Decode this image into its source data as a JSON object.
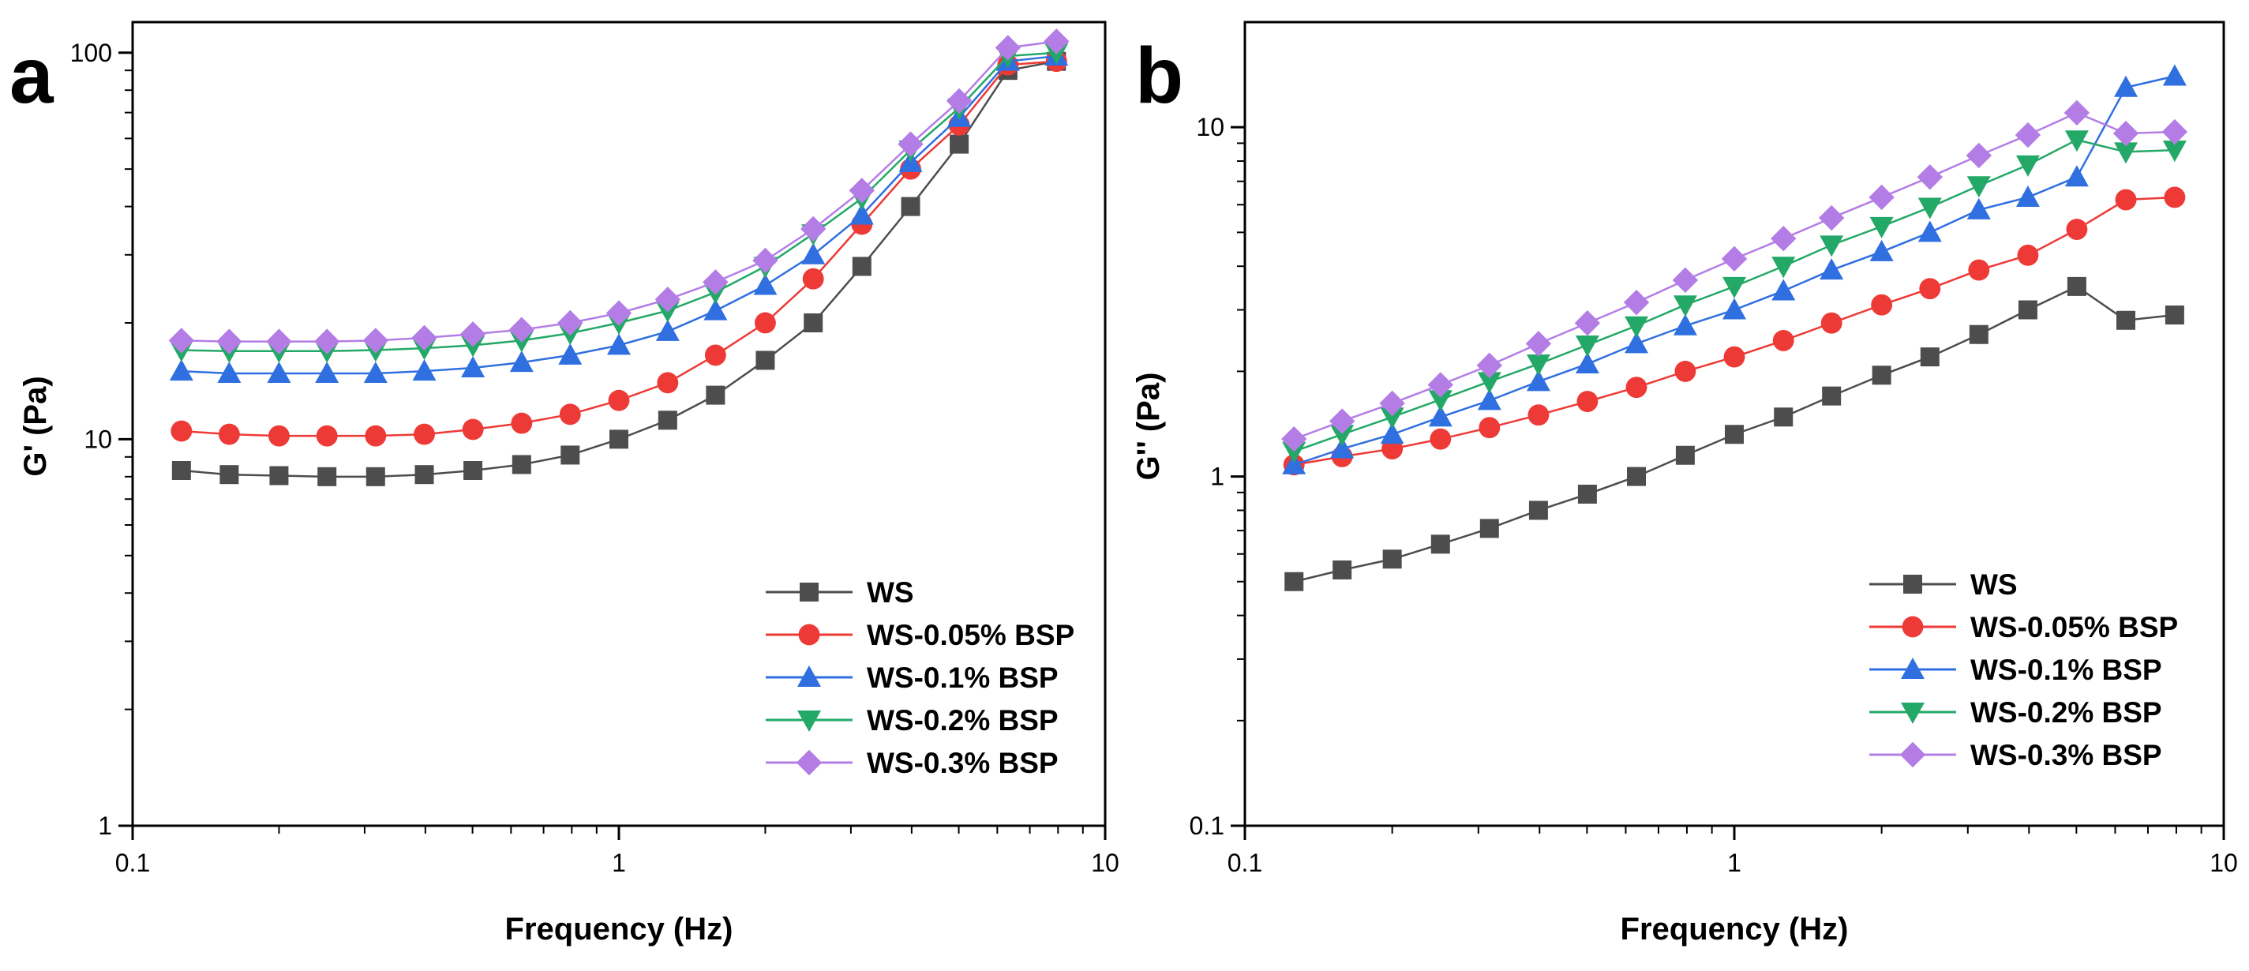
{
  "panels": [
    {
      "label": "a"
    },
    {
      "label": "b"
    }
  ],
  "colors": {
    "WS": "#4d4d4d",
    "WS-0.05% BSP": "#ee3a36",
    "WS-0.1% BSP": "#2f6fe0",
    "WS-0.2% BSP": "#23a867",
    "WS-0.3% BSP": "#b47de6"
  },
  "chart_data": [
    {
      "type": "line",
      "panel": "a",
      "title": "",
      "xlabel": "Frequency (Hz)",
      "ylabel": "G' (Pa)",
      "xscale": "log",
      "yscale": "log",
      "xlim": [
        0.1,
        10
      ],
      "ylim": [
        1,
        120
      ],
      "xticks": [
        {
          "v": 0.1,
          "label": "0.1"
        },
        {
          "v": 1,
          "label": "1"
        },
        {
          "v": 10,
          "label": "10"
        }
      ],
      "yticks": [
        {
          "v": 1,
          "label": "1"
        },
        {
          "v": 10,
          "label": "10"
        },
        {
          "v": 100,
          "label": "100"
        }
      ],
      "legend_position": "lower-right",
      "x": [
        0.126,
        0.158,
        0.2,
        0.251,
        0.316,
        0.398,
        0.501,
        0.631,
        0.794,
        1.0,
        1.26,
        1.58,
        2.0,
        2.51,
        3.16,
        3.98,
        5.01,
        6.31,
        7.94
      ],
      "series": [
        {
          "name": "WS",
          "marker": "square",
          "values": [
            8.3,
            8.1,
            8.05,
            8.0,
            8.0,
            8.1,
            8.3,
            8.6,
            9.1,
            10.0,
            11.2,
            13.0,
            16.0,
            20.0,
            28.0,
            40.0,
            58.0,
            90.0,
            95.0
          ]
        },
        {
          "name": "WS-0.05% BSP",
          "marker": "circle",
          "values": [
            10.5,
            10.3,
            10.2,
            10.2,
            10.2,
            10.3,
            10.6,
            11.0,
            11.6,
            12.6,
            14.0,
            16.5,
            20.0,
            26.0,
            36.0,
            50.0,
            65.0,
            93.0,
            95.0
          ]
        },
        {
          "name": "WS-0.1% BSP",
          "marker": "triangle-up",
          "values": [
            15.0,
            14.8,
            14.8,
            14.8,
            14.8,
            15.0,
            15.3,
            15.8,
            16.5,
            17.5,
            19.0,
            21.5,
            25.0,
            30.0,
            38.0,
            52.0,
            68.0,
            95.0,
            98.0
          ]
        },
        {
          "name": "WS-0.2% BSP",
          "marker": "triangle-down",
          "values": [
            17.0,
            16.9,
            16.9,
            16.9,
            17.0,
            17.2,
            17.5,
            18.0,
            18.8,
            20.0,
            21.5,
            24.0,
            28.0,
            34.0,
            42.0,
            56.0,
            72.0,
            98.0,
            100.0
          ]
        },
        {
          "name": "WS-0.3% BSP",
          "marker": "diamond",
          "values": [
            18.0,
            17.9,
            17.9,
            17.9,
            18.0,
            18.3,
            18.7,
            19.2,
            20.0,
            21.2,
            23.0,
            25.5,
            29.0,
            35.0,
            44.0,
            58.0,
            75.0,
            103.0,
            107.0
          ]
        }
      ]
    },
    {
      "type": "line",
      "panel": "b",
      "title": "",
      "xlabel": "Frequency (Hz)",
      "ylabel": "G'' (Pa)",
      "xscale": "log",
      "yscale": "log",
      "xlim": [
        0.1,
        10
      ],
      "ylim": [
        0.1,
        20
      ],
      "xticks": [
        {
          "v": 0.1,
          "label": "0.1"
        },
        {
          "v": 1,
          "label": "1"
        },
        {
          "v": 10,
          "label": "10"
        }
      ],
      "yticks": [
        {
          "v": 0.1,
          "label": "0.1"
        },
        {
          "v": 1,
          "label": "1"
        },
        {
          "v": 10,
          "label": "10"
        }
      ],
      "legend_position": "lower-right",
      "x": [
        0.126,
        0.158,
        0.2,
        0.251,
        0.316,
        0.398,
        0.501,
        0.631,
        0.794,
        1.0,
        1.26,
        1.58,
        2.0,
        2.51,
        3.16,
        3.98,
        5.01,
        6.31,
        7.94
      ],
      "series": [
        {
          "name": "WS",
          "marker": "square",
          "values": [
            0.5,
            0.54,
            0.58,
            0.64,
            0.71,
            0.8,
            0.89,
            1.0,
            1.15,
            1.32,
            1.48,
            1.7,
            1.95,
            2.2,
            2.55,
            3.0,
            3.5,
            2.8,
            2.9
          ]
        },
        {
          "name": "WS-0.05% BSP",
          "marker": "circle",
          "values": [
            1.08,
            1.14,
            1.2,
            1.28,
            1.38,
            1.5,
            1.64,
            1.8,
            2.0,
            2.2,
            2.45,
            2.75,
            3.1,
            3.45,
            3.9,
            4.3,
            5.1,
            6.2,
            6.3
          ]
        },
        {
          "name": "WS-0.1% BSP",
          "marker": "triangle-up",
          "values": [
            1.08,
            1.2,
            1.32,
            1.48,
            1.65,
            1.87,
            2.1,
            2.4,
            2.7,
            3.0,
            3.4,
            3.9,
            4.4,
            5.0,
            5.8,
            6.3,
            7.2,
            13.0,
            14.0
          ]
        },
        {
          "name": "WS-0.2% BSP",
          "marker": "triangle-down",
          "values": [
            1.18,
            1.32,
            1.48,
            1.66,
            1.87,
            2.1,
            2.38,
            2.7,
            3.1,
            3.5,
            4.0,
            4.6,
            5.2,
            5.9,
            6.8,
            7.8,
            9.2,
            8.5,
            8.6
          ]
        },
        {
          "name": "WS-0.3% BSP",
          "marker": "diamond",
          "values": [
            1.28,
            1.44,
            1.62,
            1.83,
            2.08,
            2.4,
            2.75,
            3.15,
            3.65,
            4.2,
            4.8,
            5.5,
            6.3,
            7.2,
            8.3,
            9.5,
            11.0,
            9.6,
            9.7
          ]
        }
      ]
    }
  ]
}
